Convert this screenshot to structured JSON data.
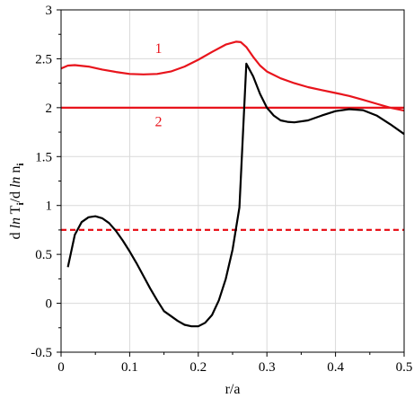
{
  "chart_data": {
    "type": "line",
    "xlabel": "r/a",
    "ylabel_parts": {
      "d1": "d ",
      "ln1": "ln",
      "T": " T",
      "sub_i1": "i",
      "slash": "/d ",
      "ln2": "ln",
      "n": " n",
      "sub_i2": "i"
    },
    "xlim": [
      0,
      0.5
    ],
    "ylim": [
      -0.5,
      3
    ],
    "xticks": [
      "0",
      "0.1",
      "0.2",
      "0.3",
      "0.4",
      "0.5"
    ],
    "yticks": [
      "-0.5",
      "0",
      "0.5",
      "1",
      "1.5",
      "2",
      "2.5",
      "3"
    ],
    "grid": true,
    "colors": {
      "red": "#e8141c",
      "black": "#000000",
      "grid": "#d9d9d9"
    },
    "series": [
      {
        "label": "1",
        "color": "#e8141c",
        "style": "solid",
        "points": [
          [
            0.0,
            2.4
          ],
          [
            0.01,
            2.43
          ],
          [
            0.02,
            2.435
          ],
          [
            0.04,
            2.42
          ],
          [
            0.06,
            2.39
          ],
          [
            0.08,
            2.365
          ],
          [
            0.1,
            2.345
          ],
          [
            0.12,
            2.34
          ],
          [
            0.14,
            2.345
          ],
          [
            0.16,
            2.37
          ],
          [
            0.18,
            2.42
          ],
          [
            0.2,
            2.49
          ],
          [
            0.22,
            2.57
          ],
          [
            0.24,
            2.645
          ],
          [
            0.255,
            2.675
          ],
          [
            0.262,
            2.67
          ],
          [
            0.27,
            2.62
          ],
          [
            0.28,
            2.52
          ],
          [
            0.29,
            2.43
          ],
          [
            0.3,
            2.37
          ],
          [
            0.32,
            2.3
          ],
          [
            0.34,
            2.25
          ],
          [
            0.36,
            2.21
          ],
          [
            0.38,
            2.18
          ],
          [
            0.4,
            2.15
          ],
          [
            0.42,
            2.12
          ],
          [
            0.44,
            2.08
          ],
          [
            0.46,
            2.04
          ],
          [
            0.48,
            2.0
          ],
          [
            0.5,
            1.97
          ]
        ]
      },
      {
        "label": "2",
        "color": "#e8141c",
        "style": "solid",
        "points": [
          [
            0.0,
            2.0
          ],
          [
            0.5,
            2.0
          ]
        ]
      },
      {
        "color": "#e8141c",
        "style": "dashed",
        "points": [
          [
            0.0,
            0.75
          ],
          [
            0.5,
            0.75
          ]
        ]
      },
      {
        "color": "#000000",
        "style": "solid",
        "points": [
          [
            0.01,
            0.37
          ],
          [
            0.02,
            0.7
          ],
          [
            0.03,
            0.83
          ],
          [
            0.04,
            0.88
          ],
          [
            0.05,
            0.89
          ],
          [
            0.06,
            0.87
          ],
          [
            0.07,
            0.82
          ],
          [
            0.08,
            0.74
          ],
          [
            0.09,
            0.64
          ],
          [
            0.1,
            0.53
          ],
          [
            0.11,
            0.41
          ],
          [
            0.12,
            0.28
          ],
          [
            0.13,
            0.15
          ],
          [
            0.14,
            0.03
          ],
          [
            0.15,
            -0.08
          ],
          [
            0.16,
            -0.13
          ],
          [
            0.17,
            -0.18
          ],
          [
            0.18,
            -0.22
          ],
          [
            0.19,
            -0.235
          ],
          [
            0.2,
            -0.235
          ],
          [
            0.21,
            -0.2
          ],
          [
            0.22,
            -0.12
          ],
          [
            0.23,
            0.03
          ],
          [
            0.24,
            0.25
          ],
          [
            0.25,
            0.55
          ],
          [
            0.26,
            0.98
          ],
          [
            0.27,
            2.45
          ],
          [
            0.28,
            2.32
          ],
          [
            0.29,
            2.14
          ],
          [
            0.3,
            2.0
          ],
          [
            0.31,
            1.92
          ],
          [
            0.32,
            1.87
          ],
          [
            0.33,
            1.855
          ],
          [
            0.34,
            1.85
          ],
          [
            0.36,
            1.87
          ],
          [
            0.38,
            1.92
          ],
          [
            0.4,
            1.965
          ],
          [
            0.42,
            1.985
          ],
          [
            0.44,
            1.975
          ],
          [
            0.46,
            1.92
          ],
          [
            0.48,
            1.83
          ],
          [
            0.5,
            1.73
          ]
        ]
      }
    ]
  }
}
